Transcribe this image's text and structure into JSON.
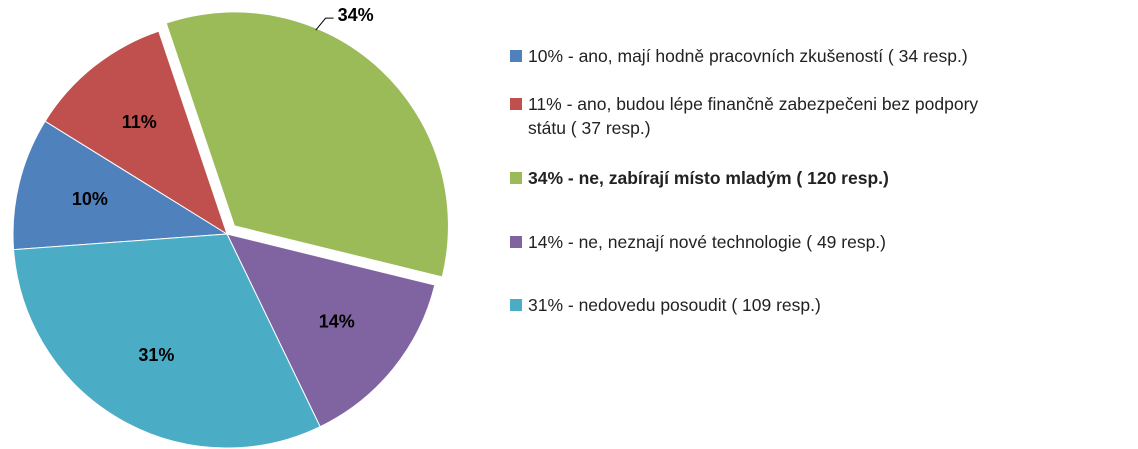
{
  "chart_data": {
    "type": "pie",
    "categories": [
      "10% - ano, mají hodně pracovních zkušeností ( 34 resp.)",
      "11% - ano, budou lépe finančně zabezpečeni bez podpory státu ( 37 resp.)",
      "34% - ne, zabírají místo mladým ( 120 resp.)",
      "14% - ne, neznají nové technologie ( 49 resp.)",
      "31% - nedovedu posoudit ( 109 resp.)"
    ],
    "values": [
      10,
      11,
      34,
      14,
      31
    ],
    "value_labels": [
      "10%",
      "11%",
      "34%",
      "14%",
      "31%"
    ],
    "colors": [
      "#4f81bd",
      "#c0504d",
      "#9bbb59",
      "#8064a2",
      "#4bacc6"
    ],
    "exploded": [
      false,
      false,
      true,
      false,
      false
    ],
    "legend": "right"
  }
}
